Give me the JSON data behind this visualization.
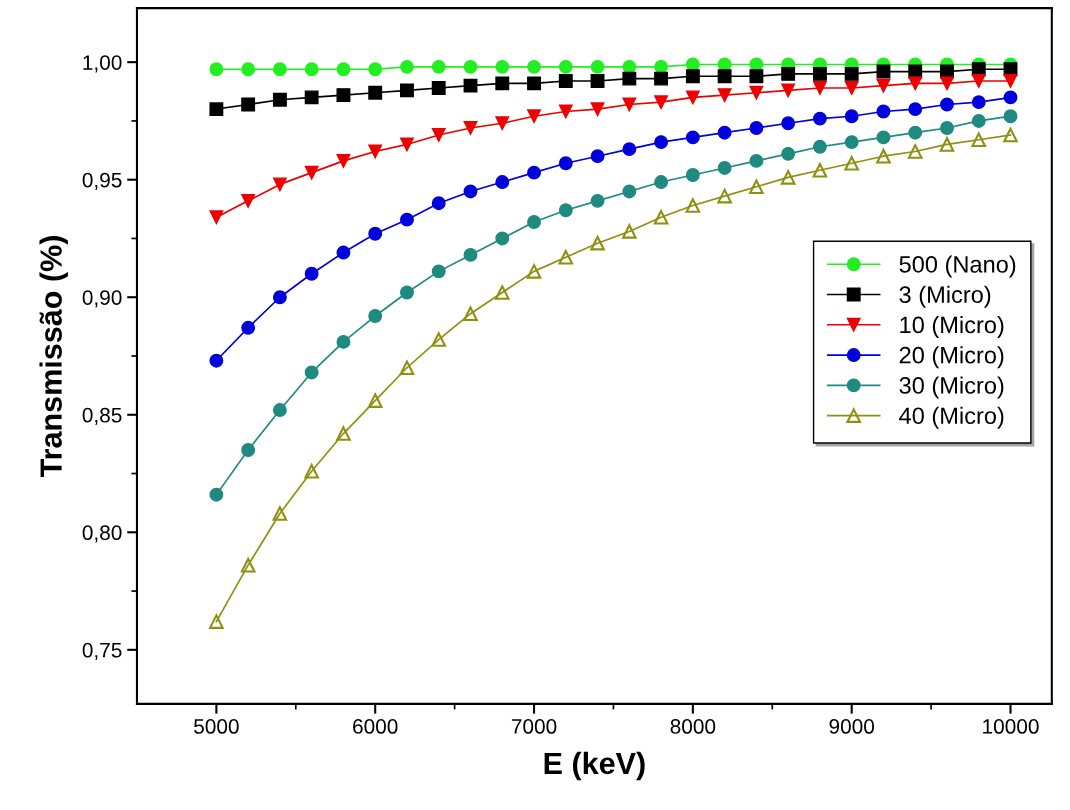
{
  "chart_data": {
    "type": "line",
    "xlabel": "E (keV)",
    "ylabel": "Transmissão (%)",
    "x": [
      5000,
      5200,
      5400,
      5600,
      5800,
      6000,
      6200,
      6400,
      6600,
      6800,
      7000,
      7200,
      7400,
      7600,
      7800,
      8000,
      8200,
      8400,
      8600,
      8800,
      9000,
      9200,
      9400,
      9600,
      9800,
      10000
    ],
    "xlim": [
      4500,
      10260
    ],
    "ylim": [
      0.727,
      1.023
    ],
    "xticks": [
      5000,
      {
        "value": 5500,
        "label": null
      },
      6000,
      {
        "value": 6500,
        "label": null
      },
      7000,
      {
        "value": 7500,
        "label": null
      },
      8000,
      {
        "value": 8500,
        "label": null
      },
      9000,
      {
        "value": 9500,
        "label": null
      },
      10000
    ],
    "yticks": [
      {
        "value": 0.75,
        "label": "0,75"
      },
      {
        "value": 0.775,
        "label": null
      },
      {
        "value": 0.8,
        "label": "0,80"
      },
      {
        "value": 0.825,
        "label": null
      },
      {
        "value": 0.85,
        "label": "0,85"
      },
      {
        "value": 0.875,
        "label": null
      },
      {
        "value": 0.9,
        "label": "0,90"
      },
      {
        "value": 0.925,
        "label": null
      },
      {
        "value": 0.95,
        "label": "0,95"
      },
      {
        "value": 0.975,
        "label": null
      },
      {
        "value": 1.0,
        "label": "1,00"
      }
    ],
    "grid": false,
    "legend": "right",
    "line_style": "solid",
    "series": [
      {
        "name": "500 (Nano)",
        "color": "#22ee22",
        "marker": "circle",
        "values": [
          0.997,
          0.997,
          0.997,
          0.997,
          0.997,
          0.997,
          0.998,
          0.998,
          0.998,
          0.998,
          0.998,
          0.998,
          0.998,
          0.998,
          0.998,
          0.999,
          0.999,
          0.999,
          0.999,
          0.999,
          0.999,
          0.999,
          0.999,
          0.999,
          0.999,
          0.999
        ]
      },
      {
        "name": "3 (Micro)",
        "color": "#000000",
        "marker": "square",
        "values": [
          0.98,
          0.982,
          0.984,
          0.985,
          0.986,
          0.987,
          0.988,
          0.989,
          0.99,
          0.991,
          0.991,
          0.992,
          0.992,
          0.993,
          0.993,
          0.994,
          0.994,
          0.994,
          0.995,
          0.995,
          0.995,
          0.996,
          0.996,
          0.996,
          0.997,
          0.997
        ]
      },
      {
        "name": "10 (Micro)",
        "color": "#ee0000",
        "marker": "triangle_down",
        "values": [
          0.934,
          0.941,
          0.948,
          0.953,
          0.958,
          0.962,
          0.965,
          0.969,
          0.972,
          0.974,
          0.977,
          0.979,
          0.98,
          0.982,
          0.983,
          0.985,
          0.986,
          0.987,
          0.988,
          0.989,
          0.989,
          0.99,
          0.991,
          0.991,
          0.992,
          0.992
        ]
      },
      {
        "name": "20 (Micro)",
        "color": "#0000dd",
        "marker": "circle",
        "values": [
          0.873,
          0.887,
          0.9,
          0.91,
          0.919,
          0.927,
          0.933,
          0.94,
          0.945,
          0.949,
          0.953,
          0.957,
          0.96,
          0.963,
          0.966,
          0.968,
          0.97,
          0.972,
          0.974,
          0.976,
          0.977,
          0.979,
          0.98,
          0.982,
          0.983,
          0.985
        ]
      },
      {
        "name": "30 (Micro)",
        "color": "#1f8a80",
        "marker": "circle",
        "values": [
          0.816,
          0.835,
          0.852,
          0.868,
          0.881,
          0.892,
          0.902,
          0.911,
          0.918,
          0.925,
          0.932,
          0.937,
          0.941,
          0.945,
          0.949,
          0.952,
          0.955,
          0.958,
          0.961,
          0.964,
          0.966,
          0.968,
          0.97,
          0.972,
          0.975,
          0.977
        ]
      },
      {
        "name": "40 (Micro)",
        "color": "#8f8f10",
        "marker": "triangle",
        "values": [
          0.762,
          0.786,
          0.808,
          0.826,
          0.842,
          0.856,
          0.87,
          0.882,
          0.893,
          0.902,
          0.911,
          0.917,
          0.923,
          0.928,
          0.934,
          0.939,
          0.943,
          0.947,
          0.951,
          0.954,
          0.957,
          0.96,
          0.962,
          0.965,
          0.967,
          0.969
        ]
      }
    ]
  }
}
